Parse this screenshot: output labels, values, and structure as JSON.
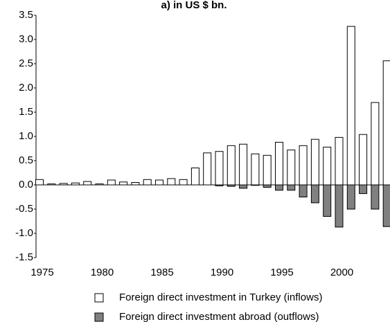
{
  "chart_data": {
    "type": "bar",
    "title": "a) in US $ bn.",
    "categories": [
      "1975",
      null,
      null,
      null,
      null,
      "1980",
      null,
      null,
      null,
      null,
      "1985",
      null,
      null,
      null,
      null,
      "1990",
      null,
      null,
      null,
      null,
      "1995",
      null,
      null,
      null,
      null,
      "2000",
      null,
      null,
      null,
      null
    ],
    "series": [
      {
        "name": "Foreign direct investment in Turkey (inflows)",
        "color": "#ffffff",
        "values": [
          0.11,
          0.02,
          0.03,
          0.04,
          0.07,
          0.02,
          0.1,
          0.06,
          0.05,
          0.11,
          0.1,
          0.13,
          0.11,
          0.35,
          0.66,
          0.69,
          0.81,
          0.84,
          0.64,
          0.61,
          0.88,
          0.72,
          0.81,
          0.94,
          0.78,
          0.98,
          3.27,
          1.04,
          1.7,
          2.56
        ]
      },
      {
        "name": "Foreign direct investment abroad (outflows)",
        "color": "#808080",
        "values": [
          0,
          0,
          0,
          0,
          0,
          0,
          0,
          0,
          0,
          0,
          0,
          0,
          0,
          0,
          0,
          -0.02,
          -0.03,
          -0.07,
          -0.01,
          -0.05,
          -0.11,
          -0.11,
          -0.25,
          -0.37,
          -0.65,
          -0.87,
          -0.5,
          -0.18,
          -0.5,
          -0.86
        ]
      }
    ],
    "ylim": [
      -1.5,
      3.5
    ],
    "yticks": [
      -1.5,
      {
        "value": -1,
        "label": "-1.0"
      },
      -0.5,
      {
        "value": 0,
        "label": "0.0"
      },
      0.5,
      {
        "value": 1,
        "label": "1.0"
      },
      1.5,
      {
        "value": 2,
        "label": "2.0"
      },
      2.5,
      {
        "value": 3,
        "label": "3.0"
      },
      3.5
    ],
    "grid": false
  }
}
